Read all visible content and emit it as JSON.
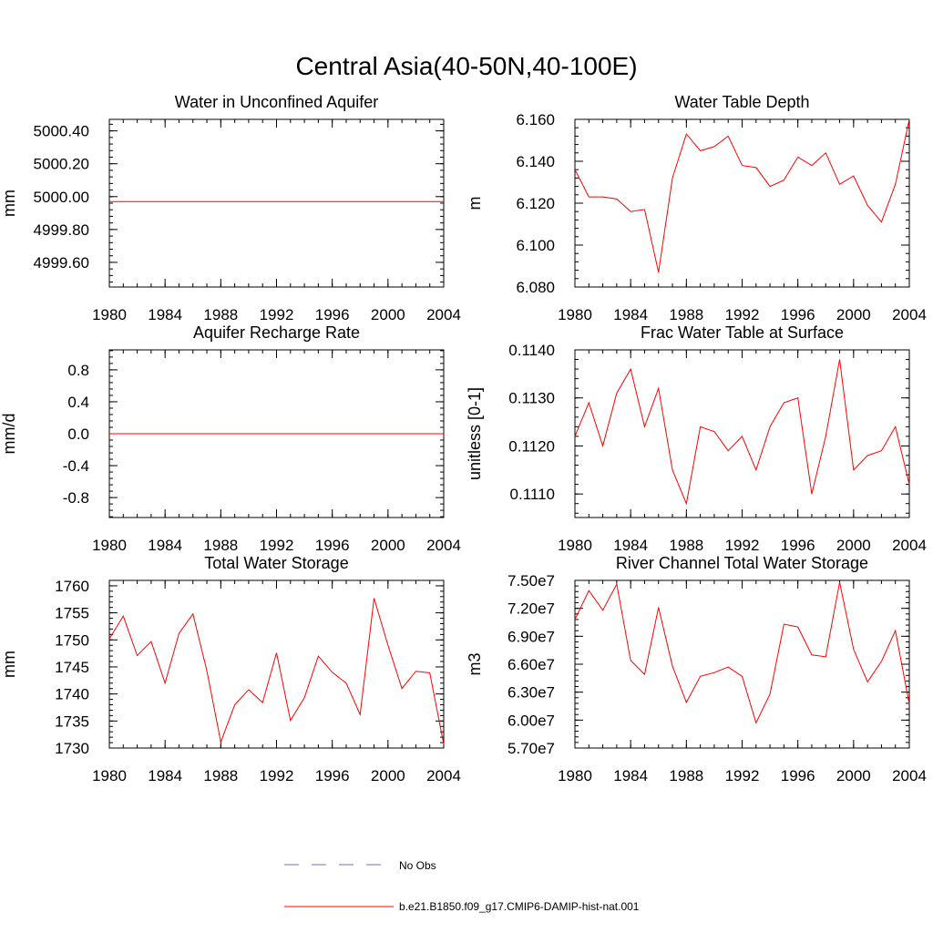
{
  "figure": {
    "title": "Central Asia(40-50N,40-100E)"
  },
  "legend": {
    "items": [
      {
        "label": "No Obs",
        "color": "#6f6faf",
        "dash": "dashed"
      },
      {
        "label": "b.e21.B1850.f09_g17.CMIP6-DAMIP-hist-nat.001",
        "color": "#ff0000",
        "dash": "solid"
      }
    ]
  },
  "chart_data": [
    {
      "type": "line",
      "title": "Water in Unconfined Aquifer",
      "ylabel": "mm",
      "xlim": [
        1980,
        2004
      ],
      "ylim": [
        4999.45,
        5000.47
      ],
      "xticks": [
        1980,
        1984,
        1988,
        1992,
        1996,
        2000,
        2004
      ],
      "yticks": [
        4999.6,
        4999.8,
        5000.0,
        5000.2,
        5000.4
      ],
      "ytick_labels": [
        "4999.60",
        "4999.80",
        "5000.00",
        "5000.20",
        "5000.40"
      ],
      "x": [
        1980,
        1981,
        1982,
        1983,
        1984,
        1985,
        1986,
        1987,
        1988,
        1989,
        1990,
        1991,
        1992,
        1993,
        1994,
        1995,
        1996,
        1997,
        1998,
        1999,
        2000,
        2001,
        2002,
        2003,
        2004
      ],
      "series": [
        {
          "color": "#ff0000",
          "values": [
            4999.97,
            4999.97,
            4999.97,
            4999.97,
            4999.97,
            4999.97,
            4999.97,
            4999.97,
            4999.97,
            4999.97,
            4999.97,
            4999.97,
            4999.97,
            4999.97,
            4999.97,
            4999.97,
            4999.97,
            4999.97,
            4999.97,
            4999.97,
            4999.97,
            4999.97,
            4999.97,
            4999.97,
            4999.97
          ]
        }
      ]
    },
    {
      "type": "line",
      "title": "Water Table Depth",
      "ylabel": "m",
      "xlim": [
        1980,
        2004
      ],
      "ylim": [
        6.08,
        6.16
      ],
      "xticks": [
        1980,
        1984,
        1988,
        1992,
        1996,
        2000,
        2004
      ],
      "yticks": [
        6.08,
        6.1,
        6.12,
        6.14,
        6.16
      ],
      "ytick_labels": [
        "6.080",
        "6.100",
        "6.120",
        "6.140",
        "6.160"
      ],
      "x": [
        1980,
        1981,
        1982,
        1983,
        1984,
        1985,
        1986,
        1987,
        1988,
        1989,
        1990,
        1991,
        1992,
        1993,
        1994,
        1995,
        1996,
        1997,
        1998,
        1999,
        2000,
        2001,
        2002,
        2003,
        2004
      ],
      "series": [
        {
          "color": "#ff0000",
          "values": [
            6.136,
            6.123,
            6.123,
            6.122,
            6.116,
            6.117,
            6.087,
            6.132,
            6.153,
            6.145,
            6.147,
            6.152,
            6.138,
            6.137,
            6.128,
            6.131,
            6.142,
            6.138,
            6.144,
            6.129,
            6.133,
            6.119,
            6.111,
            6.129,
            6.16
          ]
        }
      ]
    },
    {
      "type": "line",
      "title": "Aquifer Recharge Rate",
      "ylabel": "mm/d",
      "xlim": [
        1980,
        2004
      ],
      "ylim": [
        -1.05,
        1.05
      ],
      "xticks": [
        1980,
        1984,
        1988,
        1992,
        1996,
        2000,
        2004
      ],
      "yticks": [
        -0.8,
        -0.4,
        0.0,
        0.4,
        0.8
      ],
      "ytick_labels": [
        "-0.8",
        "-0.4",
        "0.0",
        "0.4",
        "0.8"
      ],
      "x": [
        1980,
        1981,
        1982,
        1983,
        1984,
        1985,
        1986,
        1987,
        1988,
        1989,
        1990,
        1991,
        1992,
        1993,
        1994,
        1995,
        1996,
        1997,
        1998,
        1999,
        2000,
        2001,
        2002,
        2003,
        2004
      ],
      "series": [
        {
          "color": "#ff0000",
          "values": [
            0,
            0,
            0,
            0,
            0,
            0,
            0,
            0,
            0,
            0,
            0,
            0,
            0,
            0,
            0,
            0,
            0,
            0,
            0,
            0,
            0,
            0,
            0,
            0,
            0
          ]
        }
      ]
    },
    {
      "type": "line",
      "title": "Frac Water Table at Surface",
      "ylabel": "unitless [0-1]",
      "xlim": [
        1980,
        2004
      ],
      "ylim": [
        0.11051,
        0.114
      ],
      "xticks": [
        1980,
        1984,
        1988,
        1992,
        1996,
        2000,
        2004
      ],
      "yticks": [
        0.111,
        0.112,
        0.113,
        0.114
      ],
      "ytick_labels": [
        "0.1110",
        "0.1120",
        "0.1130",
        "0.1140"
      ],
      "x": [
        1980,
        1981,
        1982,
        1983,
        1984,
        1985,
        1986,
        1987,
        1988,
        1989,
        1990,
        1991,
        1992,
        1993,
        1994,
        1995,
        1996,
        1997,
        1998,
        1999,
        2000,
        2001,
        2002,
        2003,
        2004
      ],
      "series": [
        {
          "color": "#ff0000",
          "values": [
            0.1122,
            0.1129,
            0.112,
            0.1131,
            0.1136,
            0.1124,
            0.1132,
            0.1115,
            0.1108,
            0.1124,
            0.1123,
            0.1119,
            0.1122,
            0.1115,
            0.1124,
            0.1129,
            0.113,
            0.111,
            0.1122,
            0.1138,
            0.1115,
            0.1118,
            0.1119,
            0.1124,
            0.1112
          ]
        }
      ]
    },
    {
      "type": "line",
      "title": "Total Water Storage",
      "ylabel": "mm",
      "xlim": [
        1980,
        2004
      ],
      "ylim": [
        1730,
        1761
      ],
      "xticks": [
        1980,
        1984,
        1988,
        1992,
        1996,
        2000,
        2004
      ],
      "yticks": [
        1730,
        1735,
        1740,
        1745,
        1750,
        1755,
        1760
      ],
      "ytick_labels": [
        "1730",
        "1735",
        "1740",
        "1745",
        "1750",
        "1755",
        "1760"
      ],
      "x": [
        1980,
        1981,
        1982,
        1983,
        1984,
        1985,
        1986,
        1987,
        1988,
        1989,
        1990,
        1991,
        1992,
        1993,
        1994,
        1995,
        1996,
        1997,
        1998,
        1999,
        2000,
        2001,
        2002,
        2003,
        2004
      ],
      "series": [
        {
          "color": "#ff0000",
          "values": [
            1750.2,
            1754.4,
            1747.1,
            1749.7,
            1742.0,
            1751.2,
            1754.8,
            1744.3,
            1731.1,
            1738.0,
            1740.8,
            1738.4,
            1747.6,
            1735.1,
            1739.3,
            1747.0,
            1744.0,
            1742.0,
            1736.2,
            1757.7,
            1749.0,
            1741.0,
            1744.2,
            1743.9,
            1730.7
          ]
        }
      ]
    },
    {
      "type": "line",
      "title": "River Channel Total Water Storage",
      "ylabel": "m3",
      "xlim": [
        1980,
        2004
      ],
      "ylim": [
        57000000,
        75000000
      ],
      "xticks": [
        1980,
        1984,
        1988,
        1992,
        1996,
        2000,
        2004
      ],
      "yticks": [
        57000000,
        60000000,
        63000000,
        66000000,
        69000000,
        72000000,
        75000000
      ],
      "ytick_labels": [
        "5.70e7",
        "6.00e7",
        "6.30e7",
        "6.60e7",
        "6.90e7",
        "7.20e7",
        "7.50e7"
      ],
      "x": [
        1980,
        1981,
        1982,
        1983,
        1984,
        1985,
        1986,
        1987,
        1988,
        1989,
        1990,
        1991,
        1992,
        1993,
        1994,
        1995,
        1996,
        1997,
        1998,
        1999,
        2000,
        2001,
        2002,
        2003,
        2004
      ],
      "series": [
        {
          "color": "#ff0000",
          "values": [
            70800000,
            73900000,
            71800000,
            74600000,
            66400000,
            64900000,
            72100000,
            65800000,
            61900000,
            64700000,
            65100000,
            65700000,
            64700000,
            59700000,
            62800000,
            70300000,
            70000000,
            67000000,
            66800000,
            74800000,
            67600000,
            64100000,
            66300000,
            69600000,
            61700000
          ]
        }
      ]
    }
  ]
}
